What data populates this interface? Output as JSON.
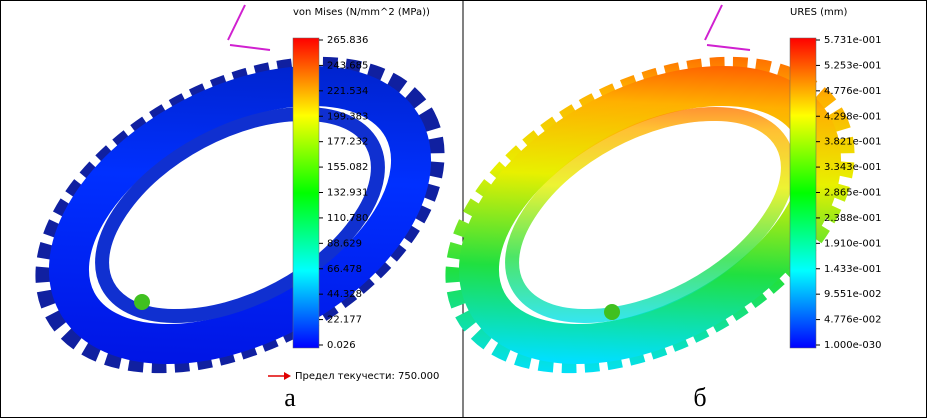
{
  "panels": [
    {
      "legend_title": "von Mises (N/mm^2 (MPa))",
      "legend_ticks": [
        "265.836",
        "243.685",
        "221.534",
        "199.383",
        "177.232",
        "155.082",
        "132.931",
        "110.780",
        "88.629",
        "66.478",
        "44.328",
        "22.177",
        "0.026"
      ],
      "yield_label": "Предел текучести: 750.000",
      "label": "а"
    },
    {
      "legend_title": "URES (mm)",
      "legend_ticks": [
        "5.731e-001",
        "5.253e-001",
        "4.776e-001",
        "4.298e-001",
        "3.821e-001",
        "3.343e-001",
        "2.865e-001",
        "2.388e-001",
        "1.910e-001",
        "1.433e-001",
        "9.551e-002",
        "4.776e-002",
        "1.000e-030"
      ],
      "label": "б"
    }
  ]
}
